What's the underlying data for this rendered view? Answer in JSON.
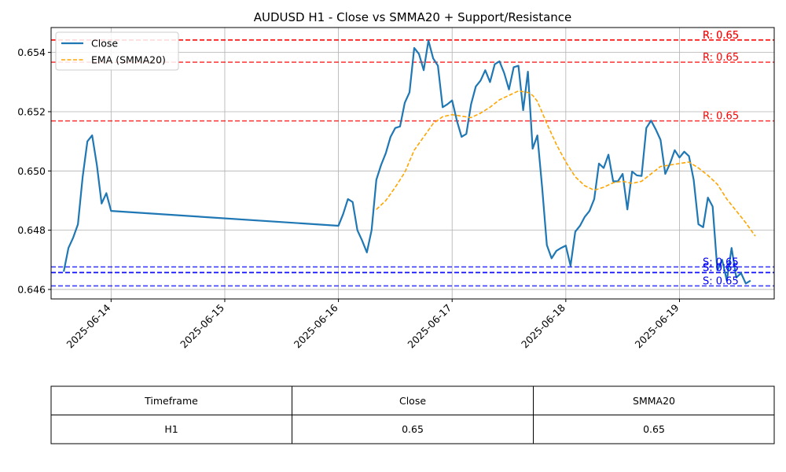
{
  "chart_data": {
    "type": "line",
    "title": "AUDUSD H1 - Close vs SMMA20 + Support/Resistance",
    "xlabel": "",
    "ylabel": "",
    "x_ticks": [
      "2025-06-14",
      "2025-06-15",
      "2025-06-16",
      "2025-06-17",
      "2025-06-18",
      "2025-06-19"
    ],
    "y_ticks": [
      "0.646",
      "0.648",
      "0.650",
      "0.652",
      "0.654"
    ],
    "ylim": [
      0.64568,
      0.65484
    ],
    "xlim": [
      "2025-06-13 11:20",
      "2025-06-19 20:00"
    ],
    "grid": true,
    "legend_position": "top-left",
    "series": [
      {
        "name": "Close",
        "color": "#1f77b4",
        "style": "solid",
        "points": [
          [
            "2025-06-13 14:00",
            0.6466
          ],
          [
            "2025-06-13 15:00",
            0.6474
          ],
          [
            "2025-06-13 16:00",
            0.64775
          ],
          [
            "2025-06-13 17:00",
            0.6482
          ],
          [
            "2025-06-13 18:00",
            0.6498
          ],
          [
            "2025-06-13 19:00",
            0.651
          ],
          [
            "2025-06-13 20:00",
            0.6512
          ],
          [
            "2025-06-13 21:00",
            0.6502
          ],
          [
            "2025-06-13 22:00",
            0.6489
          ],
          [
            "2025-06-13 23:00",
            0.64925
          ],
          [
            "2025-06-14 00:00",
            0.64865
          ],
          [
            "2025-06-16 00:00",
            0.64815
          ],
          [
            "2025-06-16 01:00",
            0.64855
          ],
          [
            "2025-06-16 02:00",
            0.64905
          ],
          [
            "2025-06-16 03:00",
            0.64895
          ],
          [
            "2025-06-16 04:00",
            0.648
          ],
          [
            "2025-06-16 05:00",
            0.64765
          ],
          [
            "2025-06-16 06:00",
            0.64725
          ],
          [
            "2025-06-16 07:00",
            0.648
          ],
          [
            "2025-06-16 08:00",
            0.6497
          ],
          [
            "2025-06-16 09:00",
            0.6502
          ],
          [
            "2025-06-16 10:00",
            0.6506
          ],
          [
            "2025-06-16 11:00",
            0.65115
          ],
          [
            "2025-06-16 12:00",
            0.65145
          ],
          [
            "2025-06-16 13:00",
            0.6515
          ],
          [
            "2025-06-16 14:00",
            0.6523
          ],
          [
            "2025-06-16 15:00",
            0.65265
          ],
          [
            "2025-06-16 16:00",
            0.65415
          ],
          [
            "2025-06-16 17:00",
            0.65395
          ],
          [
            "2025-06-16 18:00",
            0.6534
          ],
          [
            "2025-06-16 19:00",
            0.6544
          ],
          [
            "2025-06-16 20:00",
            0.6538
          ],
          [
            "2025-06-16 21:00",
            0.65355
          ],
          [
            "2025-06-16 22:00",
            0.65215
          ],
          [
            "2025-06-16 23:00",
            0.65225
          ],
          [
            "2025-06-17 00:00",
            0.65238
          ],
          [
            "2025-06-17 01:00",
            0.6517
          ],
          [
            "2025-06-17 02:00",
            0.65115
          ],
          [
            "2025-06-17 03:00",
            0.65125
          ],
          [
            "2025-06-17 04:00",
            0.65225
          ],
          [
            "2025-06-17 05:00",
            0.65285
          ],
          [
            "2025-06-17 06:00",
            0.65305
          ],
          [
            "2025-06-17 07:00",
            0.6534
          ],
          [
            "2025-06-17 08:00",
            0.653
          ],
          [
            "2025-06-17 09:00",
            0.6536
          ],
          [
            "2025-06-17 10:00",
            0.6537
          ],
          [
            "2025-06-17 11:00",
            0.6533
          ],
          [
            "2025-06-17 12:00",
            0.65275
          ],
          [
            "2025-06-17 13:00",
            0.6535
          ],
          [
            "2025-06-17 14:00",
            0.65355
          ],
          [
            "2025-06-17 15:00",
            0.65205
          ],
          [
            "2025-06-17 16:00",
            0.65335
          ],
          [
            "2025-06-17 17:00",
            0.65075
          ],
          [
            "2025-06-17 18:00",
            0.6512
          ],
          [
            "2025-06-17 19:00",
            0.64945
          ],
          [
            "2025-06-17 20:00",
            0.6475
          ],
          [
            "2025-06-17 21:00",
            0.64705
          ],
          [
            "2025-06-17 22:00",
            0.6473
          ],
          [
            "2025-06-17 23:00",
            0.6474
          ],
          [
            "2025-06-18 00:00",
            0.64748
          ],
          [
            "2025-06-18 01:00",
            0.6468
          ],
          [
            "2025-06-18 02:00",
            0.64795
          ],
          [
            "2025-06-18 03:00",
            0.64815
          ],
          [
            "2025-06-18 04:00",
            0.64845
          ],
          [
            "2025-06-18 05:00",
            0.64865
          ],
          [
            "2025-06-18 06:00",
            0.64905
          ],
          [
            "2025-06-18 07:00",
            0.65025
          ],
          [
            "2025-06-18 08:00",
            0.6501
          ],
          [
            "2025-06-18 09:00",
            0.65055
          ],
          [
            "2025-06-18 10:00",
            0.64965
          ],
          [
            "2025-06-18 11:00",
            0.64965
          ],
          [
            "2025-06-18 12:00",
            0.6499
          ],
          [
            "2025-06-18 13:00",
            0.6487
          ],
          [
            "2025-06-18 14:00",
            0.64998
          ],
          [
            "2025-06-18 15:00",
            0.64985
          ],
          [
            "2025-06-18 16:00",
            0.64983
          ],
          [
            "2025-06-18 17:00",
            0.65145
          ],
          [
            "2025-06-18 18:00",
            0.6517
          ],
          [
            "2025-06-18 19:00",
            0.6514
          ],
          [
            "2025-06-18 20:00",
            0.65105
          ],
          [
            "2025-06-18 21:00",
            0.6499
          ],
          [
            "2025-06-18 22:00",
            0.65025
          ],
          [
            "2025-06-18 23:00",
            0.6507
          ],
          [
            "2025-06-19 00:00",
            0.65045
          ],
          [
            "2025-06-19 01:00",
            0.65065
          ],
          [
            "2025-06-19 02:00",
            0.6505
          ],
          [
            "2025-06-19 03:00",
            0.6497
          ],
          [
            "2025-06-19 04:00",
            0.6482
          ],
          [
            "2025-06-19 05:00",
            0.6481
          ],
          [
            "2025-06-19 06:00",
            0.6491
          ],
          [
            "2025-06-19 07:00",
            0.6488
          ],
          [
            "2025-06-19 08:00",
            0.64665
          ],
          [
            "2025-06-19 09:00",
            0.647
          ],
          [
            "2025-06-19 10:00",
            0.6463
          ],
          [
            "2025-06-19 11:00",
            0.6474
          ],
          [
            "2025-06-19 12:00",
            0.6464
          ],
          [
            "2025-06-19 13:00",
            0.64655
          ],
          [
            "2025-06-19 14:00",
            0.6462
          ],
          [
            "2025-06-19 15:00",
            0.6463
          ]
        ]
      },
      {
        "name": "EMA (SMMA20)",
        "color": "#ffa500",
        "style": "dashed",
        "points": [
          [
            "2025-06-16 08:00",
            0.6487
          ],
          [
            "2025-06-16 10:00",
            0.649
          ],
          [
            "2025-06-16 12:00",
            0.64945
          ],
          [
            "2025-06-16 14:00",
            0.64995
          ],
          [
            "2025-06-16 16:00",
            0.6507
          ],
          [
            "2025-06-16 18:00",
            0.65115
          ],
          [
            "2025-06-16 20:00",
            0.6516
          ],
          [
            "2025-06-16 22:00",
            0.65183
          ],
          [
            "2025-06-17 00:00",
            0.6519
          ],
          [
            "2025-06-17 02:00",
            0.65185
          ],
          [
            "2025-06-17 04:00",
            0.6518
          ],
          [
            "2025-06-17 06:00",
            0.65195
          ],
          [
            "2025-06-17 08:00",
            0.65215
          ],
          [
            "2025-06-17 10:00",
            0.6524
          ],
          [
            "2025-06-17 12:00",
            0.65255
          ],
          [
            "2025-06-17 14:00",
            0.6527
          ],
          [
            "2025-06-17 16:00",
            0.65265
          ],
          [
            "2025-06-17 17:00",
            0.65255
          ],
          [
            "2025-06-17 18:00",
            0.65235
          ],
          [
            "2025-06-17 20:00",
            0.6516
          ],
          [
            "2025-06-17 22:00",
            0.6509
          ],
          [
            "2025-06-18 00:00",
            0.6503
          ],
          [
            "2025-06-18 02:00",
            0.6498
          ],
          [
            "2025-06-18 04:00",
            0.6495
          ],
          [
            "2025-06-18 06:00",
            0.64935
          ],
          [
            "2025-06-18 08:00",
            0.64945
          ],
          [
            "2025-06-18 10:00",
            0.6496
          ],
          [
            "2025-06-18 12:00",
            0.64965
          ],
          [
            "2025-06-18 14:00",
            0.64958
          ],
          [
            "2025-06-18 16:00",
            0.64965
          ],
          [
            "2025-06-18 18:00",
            0.6499
          ],
          [
            "2025-06-18 20:00",
            0.65015
          ],
          [
            "2025-06-18 22:00",
            0.6502
          ],
          [
            "2025-06-19 00:00",
            0.65025
          ],
          [
            "2025-06-19 02:00",
            0.6503
          ],
          [
            "2025-06-19 04:00",
            0.6501
          ],
          [
            "2025-06-19 06:00",
            0.64985
          ],
          [
            "2025-06-19 08:00",
            0.64955
          ],
          [
            "2025-06-19 10:00",
            0.64905
          ],
          [
            "2025-06-19 12:00",
            0.64865
          ],
          [
            "2025-06-19 14:00",
            0.64825
          ],
          [
            "2025-06-19 16:00",
            0.6478
          ]
        ]
      }
    ],
    "resistance_levels": [
      {
        "value": 0.65442,
        "label": "R: 0.65",
        "color": "#ff0000"
      },
      {
        "value": 0.65367,
        "label": "R: 0.65",
        "color": "#ff0000"
      },
      {
        "value": 0.65169,
        "label": "R: 0.65",
        "color": "#ff0000"
      },
      {
        "value": 0.65442,
        "label": "R: 0.65",
        "color": "#ff0000"
      }
    ],
    "support_levels": [
      {
        "value": 0.64676,
        "label": "S: 0.65",
        "color": "#0000ff"
      },
      {
        "value": 0.64657,
        "label": "S: 0.65",
        "color": "#0000ff"
      },
      {
        "value": 0.64612,
        "label": "S: 0.65",
        "color": "#0000ff"
      },
      {
        "value": 0.64657,
        "label": "S: 0.65",
        "color": "#0000ff"
      }
    ]
  },
  "table": {
    "headers": [
      "Timeframe",
      "Close",
      "SMMA20"
    ],
    "rows": [
      [
        "H1",
        "0.65",
        "0.65"
      ]
    ]
  }
}
